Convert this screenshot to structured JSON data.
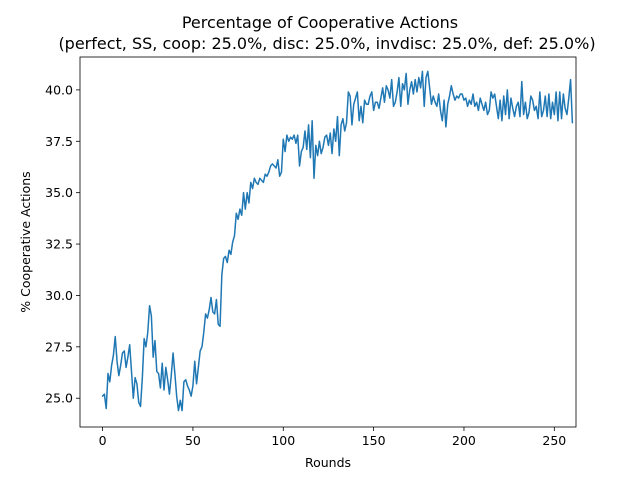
{
  "chart_data": {
    "type": "line",
    "title": "Percentage of Cooperative Actions",
    "subtitle": "(perfect, SS, coop: 25.0%, disc: 25.0%, invdisc: 25.0%, def: 25.0%)",
    "xlabel": "Rounds",
    "ylabel": "% Cooperative Actions",
    "xlim": [
      -12.5,
      262
    ],
    "ylim": [
      23.6,
      41.6
    ],
    "xticks": [
      0,
      50,
      100,
      150,
      200,
      250
    ],
    "yticks": [
      25.0,
      27.5,
      30.0,
      32.5,
      35.0,
      37.5,
      40.0
    ],
    "ytick_labels": [
      "25.0",
      "27.5",
      "30.0",
      "32.5",
      "35.0",
      "37.5",
      "40.0"
    ],
    "grid": false,
    "line_color": "#1f77b4",
    "series": [
      {
        "x_start": 0,
        "x_step": 1,
        "values": [
          25.1,
          25.2,
          24.5,
          26.2,
          25.8,
          26.6,
          27.1,
          28.0,
          26.8,
          26.1,
          26.6,
          27.2,
          27.3,
          26.5,
          27.0,
          27.6,
          26.3,
          25.0,
          26.0,
          25.7,
          24.8,
          24.6,
          26.0,
          27.9,
          27.5,
          28.2,
          29.5,
          29.0,
          27.0,
          27.8,
          26.3,
          26.2,
          25.5,
          26.7,
          25.4,
          26.5,
          25.9,
          25.2,
          26.1,
          27.2,
          26.2,
          25.1,
          24.4,
          24.9,
          24.4,
          25.8,
          25.9,
          25.6,
          25.4,
          25.1,
          25.6,
          26.8,
          25.7,
          26.5,
          27.3,
          27.5,
          28.2,
          29.1,
          28.9,
          29.3,
          29.9,
          29.2,
          29.1,
          29.8,
          28.6,
          28.5,
          31.0,
          31.8,
          31.9,
          31.6,
          32.2,
          32.0,
          32.6,
          32.9,
          34.0,
          33.7,
          34.2,
          33.9,
          35.0,
          34.2,
          35.0,
          34.5,
          35.5,
          35.2,
          35.7,
          35.5,
          35.4,
          35.7,
          35.6,
          35.5,
          35.9,
          35.8,
          36.0,
          36.3,
          36.4,
          36.3,
          36.2,
          36.6,
          35.8,
          36.0,
          37.6,
          37.0,
          37.8,
          37.5,
          37.7,
          37.6,
          37.8,
          37.4,
          37.8,
          36.3,
          37.0,
          37.2,
          38.0,
          37.1,
          38.3,
          36.7,
          38.5,
          35.7,
          37.3,
          36.8,
          37.5,
          36.9,
          37.2,
          37.7,
          37.8,
          37.3,
          37.9,
          36.9,
          38.1,
          37.5,
          38.7,
          36.8,
          38.3,
          38.6,
          38.0,
          38.4,
          39.9,
          39.7,
          38.3,
          39.3,
          39.6,
          39.9,
          38.5,
          39.2,
          38.4,
          39.5,
          39.3,
          39.3,
          39.7,
          39.9,
          39.0,
          39.4,
          39.4,
          39.1,
          39.6,
          40.1,
          39.4,
          40.2,
          40.0,
          39.6,
          40.5,
          39.2,
          39.4,
          39.9,
          40.6,
          39.2,
          40.3,
          40.0,
          40.8,
          39.3,
          40.0,
          40.4,
          39.8,
          40.5,
          39.9,
          40.6,
          40.1,
          40.9,
          39.2,
          40.6,
          40.9,
          40.1,
          39.3,
          39.7,
          39.4,
          39.2,
          39.8,
          39.0,
          38.5,
          39.5,
          38.2,
          39.3,
          39.7,
          40.2,
          39.8,
          39.5,
          39.7,
          39.6,
          39.8,
          39.8,
          39.5,
          39.6,
          39.2,
          39.5,
          39.3,
          39.8,
          39.2,
          39.4,
          39.0,
          39.6,
          39.3,
          39.0,
          39.4,
          38.8,
          39.0,
          39.9,
          39.6,
          39.8,
          39.2,
          38.6,
          39.5,
          38.5,
          39.7,
          38.8,
          40.0,
          38.6,
          39.6,
          39.1,
          38.7,
          39.2,
          39.4,
          38.7,
          40.4,
          38.8,
          39.4,
          38.6,
          38.9,
          39.7,
          39.5,
          39.0,
          39.2,
          38.6,
          39.9,
          38.7,
          39.0,
          39.7,
          38.7,
          39.8,
          38.6,
          39.4,
          38.8,
          39.9,
          38.5,
          39.9,
          38.6,
          39.8,
          39.1,
          38.8,
          39.6,
          40.5,
          38.4
        ]
      }
    ]
  }
}
